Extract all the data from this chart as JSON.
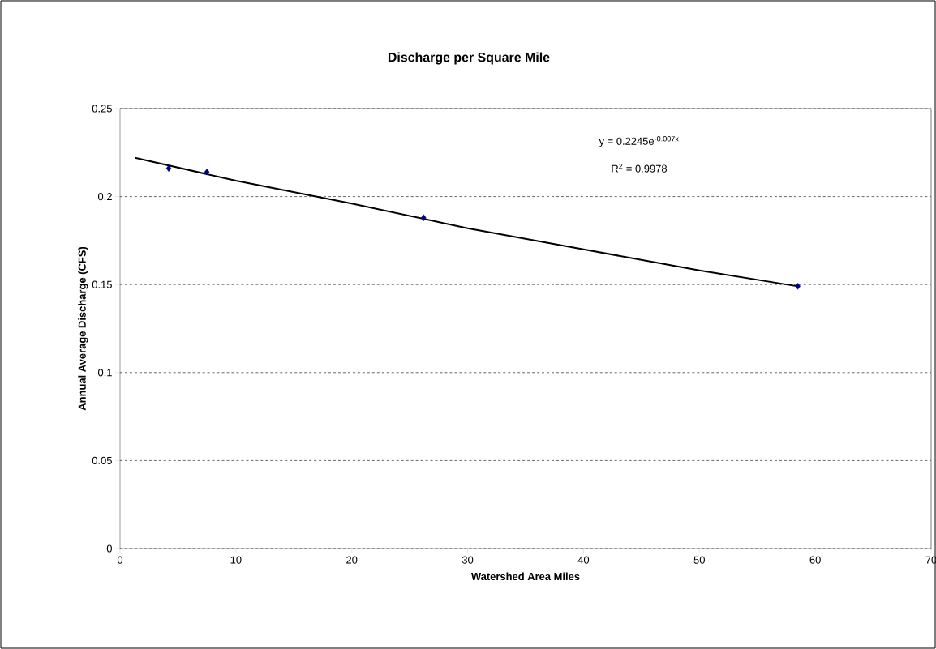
{
  "chart_data": {
    "type": "scatter",
    "title": "Discharge per Square Mile",
    "xlabel": "Watershed Area Miles",
    "ylabel": "Annual Average Discharge (CFS)",
    "series": [
      {
        "color": "#000080",
        "marker": "diamond",
        "x": [
          4.2,
          7.5,
          26.2,
          58.5
        ],
        "values": [
          0.216,
          0.214,
          0.188,
          0.149
        ]
      },
      {
        "type": "line",
        "color": "#000000",
        "x": [
          1.3,
          10,
          20,
          30,
          40,
          50,
          58.5
        ],
        "values": [
          0.222,
          0.209,
          0.196,
          0.182,
          0.17,
          0.158,
          0.149
        ]
      }
    ],
    "annotations": [
      "y = 0.2245e$^{-0.007x}$",
      "R$^{2}$ = 0.9978"
    ],
    "xlim": [
      0,
      70
    ],
    "xticks": [
      0,
      10,
      20,
      30,
      40,
      50,
      60,
      70
    ],
    "ylim": [
      0,
      0.25
    ],
    "yticks": [
      0,
      0.05,
      0.1,
      0.15,
      0.2,
      0.25
    ],
    "grid": "y"
  }
}
